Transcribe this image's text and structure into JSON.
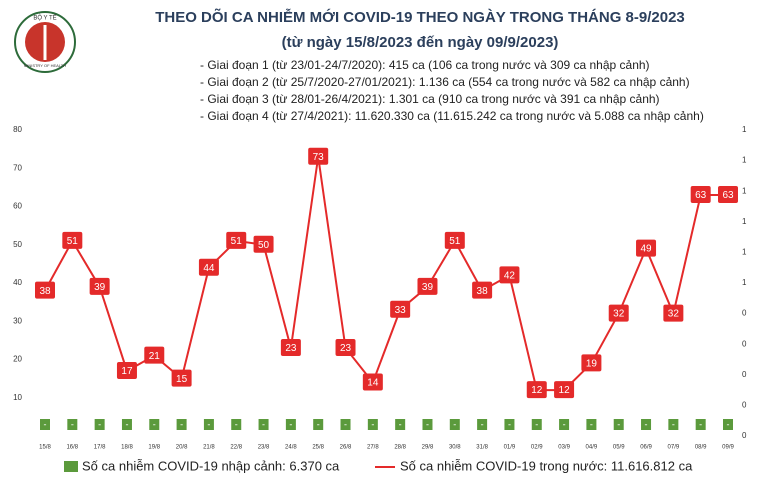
{
  "logo": {
    "top": "BỘ Y TẾ",
    "bottom": "MINISTRY OF HEALTH"
  },
  "chart_data": {
    "type": "bar-line",
    "title": "THEO DÕI CA NHIỄM MỚI COVID-19 THEO NGÀY TRONG THÁNG 8-9/2023",
    "subtitle": "(từ ngày 15/8/2023 đến ngày 09/9/2023)",
    "annotations": [
      "- Giai đoạn 1 (từ 23/01-24/7/2020): 415 ca (106 ca trong nước và 309 ca nhập cảnh)",
      "- Giai đoạn 2 (từ 25/7/2020-27/01/2021): 1.136 ca (554 ca trong nước và 582 ca nhập cảnh)",
      "- Giai đoạn 3 (từ 28/01-26/4/2021): 1.301 ca (910 ca trong nước và 391 ca nhập cảnh)",
      "- Giai đoạn 4 (từ 27/4/2021): 11.620.330 ca (11.615.242 ca trong nước và 5.088 ca nhập cảnh)"
    ],
    "categories": [
      "15/8",
      "16/8",
      "17/8",
      "18/8",
      "19/8",
      "20/8",
      "21/8",
      "22/8",
      "23/8",
      "24/8",
      "25/8",
      "26/8",
      "27/8",
      "28/8",
      "29/8",
      "30/8",
      "31/8",
      "01/9",
      "02/9",
      "03/9",
      "04/9",
      "05/9",
      "06/9",
      "07/9",
      "08/9",
      "09/9"
    ],
    "series": [
      {
        "name": "Số ca nhiễm COVID-19 nhập cảnh: 6.370 ca",
        "type": "bar",
        "axis": "y2",
        "color": "#5b9a3c",
        "values": [
          0,
          0,
          0,
          0,
          0,
          0,
          0,
          0,
          0,
          0,
          0,
          0,
          0,
          0,
          0,
          0,
          0,
          0,
          0,
          0,
          0,
          0,
          0,
          0,
          0,
          0
        ],
        "value_labels": [
          "-",
          "-",
          "-",
          "-",
          "-",
          "-",
          "-",
          "-",
          "-",
          "-",
          "-",
          "-",
          "-",
          "-",
          "-",
          "-",
          "-",
          "-",
          "-",
          "-",
          "-",
          "-",
          "-",
          "-",
          "-",
          "-"
        ]
      },
      {
        "name": "Số ca nhiễm COVID-19 trong nước: 11.616.812 ca",
        "type": "line",
        "color": "#e42a2a",
        "values": [
          38,
          51,
          39,
          17,
          21,
          15,
          44,
          51,
          50,
          23,
          73,
          23,
          14,
          33,
          39,
          51,
          38,
          42,
          12,
          12,
          19,
          32,
          49,
          32,
          63,
          63
        ]
      }
    ],
    "ylim": [
      0,
      80
    ],
    "yticks": [
      10,
      20,
      30,
      40,
      50,
      60,
      70,
      80
    ],
    "y2lim": [
      0,
      1
    ],
    "y2ticks": [
      0,
      {
        "value": 0.1,
        "label": "0"
      },
      {
        "value": 0.2,
        "label": "0"
      },
      {
        "value": 0.3,
        "label": "0"
      },
      {
        "value": 0.4,
        "label": "0"
      },
      {
        "value": 0.5,
        "label": "1"
      },
      {
        "value": 0.6,
        "label": "1"
      },
      {
        "value": 0.7,
        "label": "1"
      },
      {
        "value": 0.8,
        "label": "1"
      },
      {
        "value": 0.9,
        "label": "1"
      },
      1
    ]
  }
}
